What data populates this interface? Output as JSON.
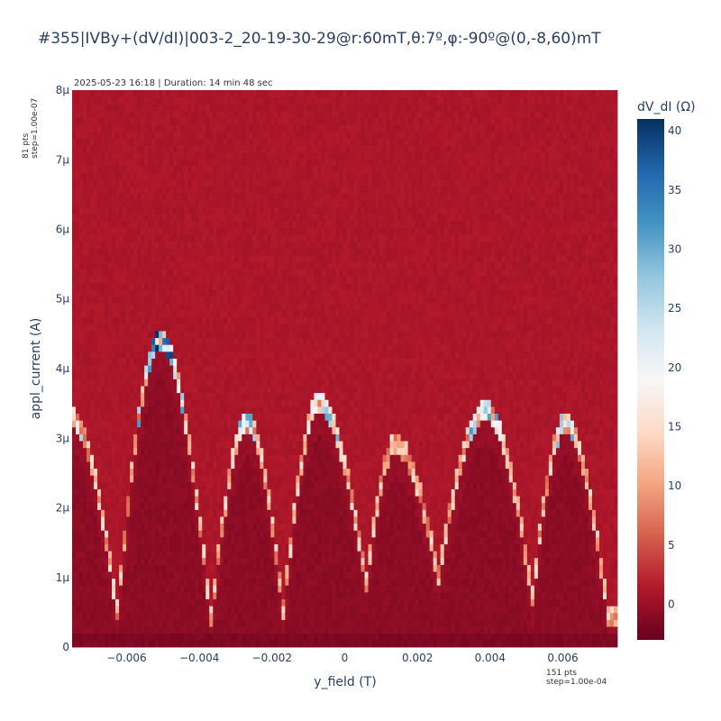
{
  "title": "#355|IVBy+(dV/dI)|003-2_20-19-30-29@r:60mT,θ:7º,φ:-90º@(0,-8,60)mT",
  "timestamp": "2025-05-23 16:18 | Duration: 14 min 48 sec",
  "y_points_note": [
    "81 pts",
    "step=1.00e-07"
  ],
  "x_points_note": [
    "151 pts",
    "step=1.00e-04"
  ],
  "chart_data": {
    "type": "heatmap",
    "xlabel": "y_field (T)",
    "ylabel": "appl_current (A)",
    "colorbar_title": "dV_dI (Ω)",
    "colorscale": "RdBu",
    "zlim": [
      -3,
      41
    ],
    "x_range": [
      -0.0075,
      0.0075
    ],
    "y_range": [
      0,
      8e-06
    ],
    "x_step": 0.0001,
    "y_step": 1e-07,
    "x_points": 151,
    "y_points": 81,
    "x_tick_values": [
      -0.006,
      -0.004,
      -0.002,
      0,
      0.002,
      0.004,
      0.006
    ],
    "x_tick_labels": [
      "−0.006",
      "−0.004",
      "−0.002",
      "0",
      "0.002",
      "0.004",
      "0.006"
    ],
    "y_tick_values": [
      0,
      1e-06,
      2e-06,
      3e-06,
      4e-06,
      5e-06,
      6e-06,
      7e-06,
      8e-06
    ],
    "y_tick_labels": [
      "0",
      "1μ",
      "2μ",
      "3μ",
      "4μ",
      "5μ",
      "6μ",
      "7μ",
      "8μ"
    ],
    "colorbar_tick_values": [
      0,
      5,
      10,
      15,
      20,
      25,
      30,
      35,
      40
    ],
    "colorbar_tick_labels": [
      "0",
      "5",
      "10",
      "15",
      "20",
      "25",
      "30",
      "35",
      "40"
    ],
    "background_dV_dI": 1.0,
    "critical_current_lobes": [
      {
        "center_y_field": -0.0076,
        "peak_current": 3.3e-06
      },
      {
        "center_y_field": -0.0051,
        "peak_current": 4.4e-06
      },
      {
        "center_y_field": -0.0027,
        "peak_current": 3.2e-06
      },
      {
        "center_y_field": -0.0007,
        "peak_current": 3.5e-06
      },
      {
        "center_y_field": 0.0014,
        "peak_current": 2.9e-06
      },
      {
        "center_y_field": 0.0039,
        "peak_current": 3.4e-06
      },
      {
        "center_y_field": 0.0061,
        "peak_current": 3.2e-06
      }
    ],
    "lobe_minima": [
      {
        "y_field": -0.0063,
        "current": 5e-07
      },
      {
        "y_field": -0.0037,
        "current": 4e-07
      },
      {
        "y_field": -0.0017,
        "current": 5e-07
      },
      {
        "y_field": 0.0006,
        "current": 9e-07
      },
      {
        "y_field": 0.0026,
        "current": 1e-06
      },
      {
        "y_field": 0.0052,
        "current": 7e-07
      },
      {
        "y_field": 0.0073,
        "current": 4e-07
      }
    ]
  }
}
